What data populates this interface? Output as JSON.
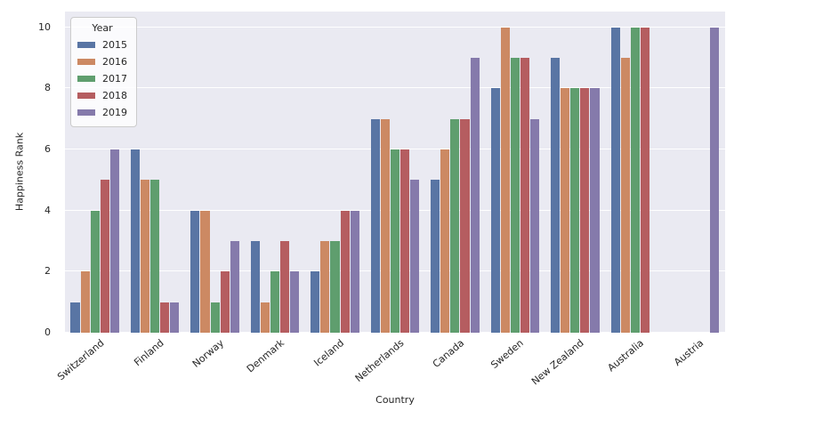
{
  "chart_data": {
    "type": "bar",
    "title": "",
    "xlabel": "Country",
    "ylabel": "Happiness Rank",
    "categories": [
      "Switzerland",
      "Finland",
      "Norway",
      "Denmark",
      "Iceland",
      "Netherlands",
      "Canada",
      "Sweden",
      "New Zealand",
      "Australia",
      "Austria"
    ],
    "series": [
      {
        "name": "2015",
        "color": "#5975a4",
        "values": [
          1,
          6,
          4,
          3,
          2,
          7,
          5,
          8,
          9,
          10,
          null
        ]
      },
      {
        "name": "2016",
        "color": "#cc8963",
        "values": [
          2,
          5,
          4,
          1,
          3,
          7,
          6,
          10,
          8,
          9,
          null
        ]
      },
      {
        "name": "2017",
        "color": "#5f9e6e",
        "values": [
          4,
          5,
          1,
          2,
          3,
          6,
          7,
          9,
          8,
          10,
          null
        ]
      },
      {
        "name": "2018",
        "color": "#b55d60",
        "values": [
          5,
          1,
          2,
          3,
          4,
          6,
          7,
          9,
          8,
          10,
          null
        ]
      },
      {
        "name": "2019",
        "color": "#857aab",
        "values": [
          6,
          1,
          3,
          2,
          4,
          5,
          9,
          7,
          8,
          null,
          10
        ]
      }
    ],
    "legend": {
      "title": "Year",
      "position": "upper-left"
    },
    "yticks": [
      0,
      2,
      4,
      6,
      8,
      10
    ],
    "ylim": [
      0,
      10.52
    ],
    "grid": "horizontal",
    "colors": {
      "plot_background": "#eaeaf2",
      "grid_line": "#ffffff",
      "text": "#262626",
      "legend_border": "#cccccc"
    }
  }
}
